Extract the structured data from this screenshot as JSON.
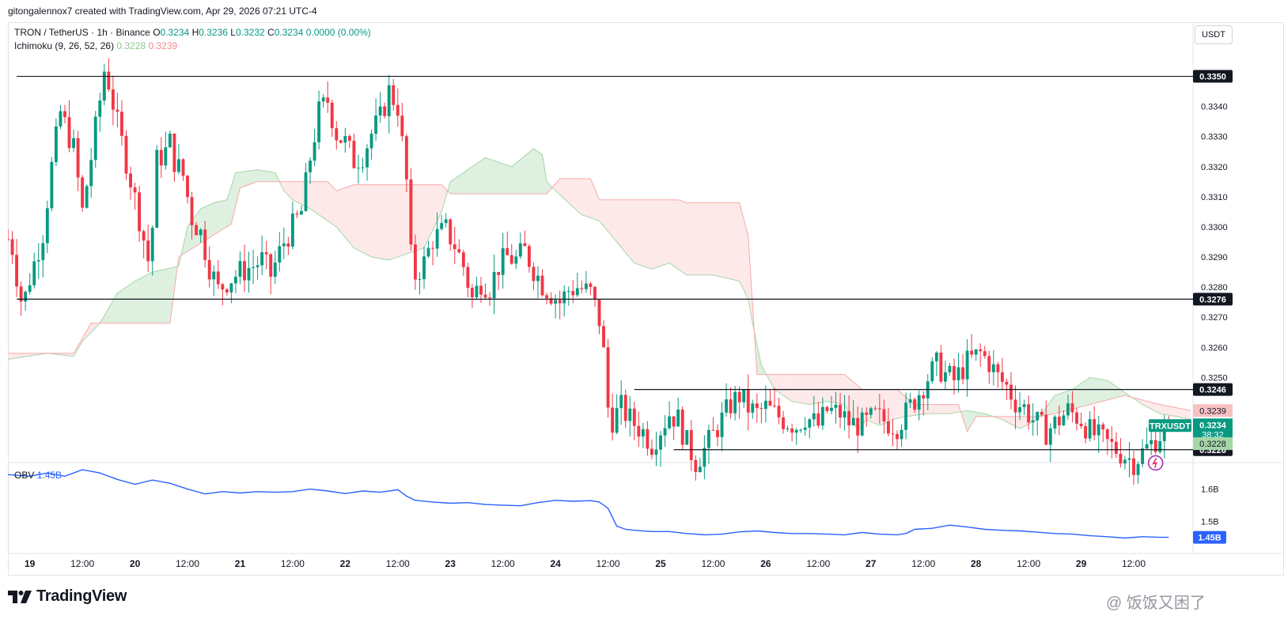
{
  "header": {
    "credit": "gitongalennox7 created with TradingView.com, Apr 29, 2026 07:21 UTC-4"
  },
  "legend": {
    "symbol": "TRON / TetherUS · 1h · Binance",
    "o_label": "O",
    "o_value": "0.3234",
    "h_label": "H",
    "h_value": "0.3236",
    "l_label": "L",
    "l_value": "0.3232",
    "c_label": "C",
    "c_value": "0.3234",
    "change": "0.0000 (0.00%)",
    "ichimoku_label": "Ichimoku (9, 26, 52, 26)",
    "ichimoku_a": "0.3228",
    "ichimoku_b": "0.3239",
    "obv_label": "OBV",
    "obv_value": "1.45B"
  },
  "currency": "USDT",
  "symbol_badge": "TRXUSDT",
  "countdown": "38:32",
  "brand": {
    "name": "TradingView"
  },
  "watermark": "@ 饭饭又困了",
  "colors": {
    "up": "#089981",
    "down": "#f23645",
    "obv": "#2962ff",
    "cloud_bull": "#c8e6c9",
    "cloud_bear": "#fcdada"
  },
  "chart_data": {
    "type": "candlestick",
    "title": "TRON / TetherUS · 1h · Binance",
    "price_range": [
      0.3222,
      0.3368
    ],
    "y_ticks": [
      "0.3340",
      "0.3330",
      "0.3320",
      "0.3310",
      "0.3300",
      "0.3290",
      "0.3280",
      "0.3270",
      "0.3260",
      "0.3250"
    ],
    "y_tick_values": [
      0.334,
      0.333,
      0.332,
      0.331,
      0.33,
      0.329,
      0.328,
      0.327,
      0.326,
      0.325
    ],
    "x_labels": [
      "19",
      "12:00",
      "20",
      "12:00",
      "21",
      "12:00",
      "22",
      "12:00",
      "23",
      "12:00",
      "24",
      "12:00",
      "25",
      "12:00",
      "26",
      "12:00",
      "27",
      "12:00",
      "28",
      "12:00",
      "29",
      "12:00"
    ],
    "x_label_times": [
      0,
      12,
      24,
      36,
      48,
      60,
      72,
      84,
      96,
      108,
      120,
      132,
      144,
      156,
      168,
      180,
      192,
      204,
      216,
      228,
      240,
      252
    ],
    "time_range": [
      -5,
      265
    ],
    "horizontal_levels": [
      {
        "label": "0.3350",
        "price": 0.335,
        "t_start": -3,
        "t_end": 265
      },
      {
        "label": "0.3276",
        "price": 0.3276,
        "t_start": -3,
        "t_end": 265
      },
      {
        "label": "0.3246",
        "price": 0.3246,
        "t_start": 138,
        "t_end": 265
      },
      {
        "label": "0.3226",
        "price": 0.3226,
        "t_start": 147,
        "t_end": 265
      }
    ],
    "price_labels": [
      {
        "label": "0.3239",
        "price": 0.3239,
        "kind": "ichimoku_b"
      },
      {
        "label": "0.3234",
        "price": 0.3234,
        "kind": "last"
      },
      {
        "label": "0.3228",
        "price": 0.3228,
        "kind": "ichimoku_a"
      }
    ],
    "candles_path": [
      [
        -5,
        0.3296
      ],
      [
        -4,
        0.3293
      ],
      [
        -3,
        0.3284
      ],
      [
        -2,
        0.3276
      ],
      [
        -1,
        0.3277
      ],
      [
        0,
        0.3283
      ],
      [
        3,
        0.3298
      ],
      [
        5,
        0.332
      ],
      [
        7,
        0.3338
      ],
      [
        10,
        0.3326
      ],
      [
        12,
        0.3305
      ],
      [
        14,
        0.3323
      ],
      [
        16,
        0.3342
      ],
      [
        17,
        0.3352
      ],
      [
        18,
        0.3348
      ],
      [
        20,
        0.3334
      ],
      [
        22,
        0.3322
      ],
      [
        25,
        0.3303
      ],
      [
        26,
        0.3296
      ],
      [
        27,
        0.3289
      ],
      [
        28,
        0.33
      ],
      [
        29,
        0.3322
      ],
      [
        31,
        0.3325
      ],
      [
        32,
        0.3328
      ],
      [
        33,
        0.3322
      ],
      [
        35,
        0.3317
      ],
      [
        37,
        0.3303
      ],
      [
        39,
        0.3298
      ],
      [
        41,
        0.3287
      ],
      [
        43,
        0.3279
      ],
      [
        45,
        0.3282
      ],
      [
        48,
        0.3285
      ],
      [
        51,
        0.3287
      ],
      [
        53,
        0.3289
      ],
      [
        55,
        0.3284
      ],
      [
        58,
        0.3295
      ],
      [
        62,
        0.3305
      ],
      [
        64,
        0.3323
      ],
      [
        66,
        0.3338
      ],
      [
        68,
        0.3342
      ],
      [
        70,
        0.3331
      ],
      [
        72,
        0.3328
      ],
      [
        74,
        0.3322
      ],
      [
        76,
        0.3324
      ],
      [
        78,
        0.3331
      ],
      [
        80,
        0.3336
      ],
      [
        82,
        0.3345
      ],
      [
        84,
        0.334
      ],
      [
        86,
        0.3315
      ],
      [
        87,
        0.329
      ],
      [
        88,
        0.3284
      ],
      [
        90,
        0.3288
      ],
      [
        92,
        0.3296
      ],
      [
        95,
        0.3299
      ],
      [
        97,
        0.3294
      ],
      [
        99,
        0.3287
      ],
      [
        101,
        0.3276
      ],
      [
        103,
        0.3282
      ],
      [
        105,
        0.328
      ],
      [
        107,
        0.3287
      ],
      [
        109,
        0.329
      ],
      [
        111,
        0.3289
      ],
      [
        113,
        0.3292
      ],
      [
        115,
        0.3286
      ],
      [
        117,
        0.3281
      ],
      [
        119,
        0.3278
      ],
      [
        121,
        0.3275
      ],
      [
        123,
        0.3279
      ],
      [
        125,
        0.328
      ],
      [
        128,
        0.3278
      ],
      [
        130,
        0.3269
      ],
      [
        131,
        0.3258
      ],
      [
        132,
        0.324
      ],
      [
        133,
        0.3236
      ],
      [
        135,
        0.324
      ],
      [
        137,
        0.3236
      ],
      [
        140,
        0.3232
      ],
      [
        142,
        0.3228
      ],
      [
        144,
        0.3233
      ],
      [
        146,
        0.3238
      ],
      [
        148,
        0.3236
      ],
      [
        150,
        0.3228
      ],
      [
        152,
        0.3222
      ],
      [
        154,
        0.3226
      ],
      [
        156,
        0.3231
      ],
      [
        158,
        0.3236
      ],
      [
        160,
        0.3241
      ],
      [
        162,
        0.3244
      ],
      [
        164,
        0.324
      ],
      [
        166,
        0.3238
      ],
      [
        168,
        0.324
      ],
      [
        170,
        0.3238
      ],
      [
        172,
        0.3236
      ],
      [
        175,
        0.3234
      ],
      [
        177,
        0.3237
      ],
      [
        180,
        0.3234
      ],
      [
        182,
        0.3239
      ],
      [
        185,
        0.3238
      ],
      [
        187,
        0.3235
      ],
      [
        190,
        0.3234
      ],
      [
        193,
        0.3237
      ],
      [
        196,
        0.3235
      ],
      [
        198,
        0.3234
      ],
      [
        200,
        0.3238
      ],
      [
        203,
        0.3245
      ],
      [
        205,
        0.325
      ],
      [
        207,
        0.3254
      ],
      [
        209,
        0.3251
      ],
      [
        211,
        0.3249
      ],
      [
        214,
        0.3255
      ],
      [
        217,
        0.3258
      ],
      [
        219,
        0.3255
      ],
      [
        221,
        0.325
      ],
      [
        223,
        0.3247
      ],
      [
        225,
        0.3242
      ],
      [
        227,
        0.324
      ],
      [
        229,
        0.3236
      ],
      [
        232,
        0.3232
      ],
      [
        235,
        0.3236
      ],
      [
        237,
        0.3239
      ],
      [
        240,
        0.3236
      ],
      [
        242,
        0.3232
      ],
      [
        244,
        0.323
      ],
      [
        246,
        0.3228
      ],
      [
        248,
        0.3226
      ],
      [
        250,
        0.3224
      ],
      [
        252,
        0.3222
      ],
      [
        254,
        0.3225
      ],
      [
        256,
        0.3228
      ],
      [
        258,
        0.3231
      ],
      [
        260,
        0.3234
      ]
    ],
    "ichimoku_span_a": [
      [
        -5,
        0.3256
      ],
      [
        4,
        0.3258
      ],
      [
        10,
        0.3257
      ],
      [
        12,
        0.3262
      ],
      [
        16,
        0.3268
      ],
      [
        20,
        0.3278
      ],
      [
        24,
        0.3282
      ],
      [
        28,
        0.3285
      ],
      [
        31,
        0.3286
      ],
      [
        34,
        0.3287
      ],
      [
        36,
        0.33
      ],
      [
        39,
        0.3306
      ],
      [
        42,
        0.3308
      ],
      [
        45,
        0.3309
      ],
      [
        47,
        0.3318
      ],
      [
        52,
        0.3319
      ],
      [
        56,
        0.3318
      ],
      [
        58,
        0.3312
      ],
      [
        60,
        0.3309
      ],
      [
        64,
        0.3306
      ],
      [
        68,
        0.3302
      ],
      [
        70,
        0.33
      ],
      [
        74,
        0.3293
      ],
      [
        78,
        0.329
      ],
      [
        82,
        0.3289
      ],
      [
        86,
        0.3291
      ],
      [
        90,
        0.3293
      ],
      [
        94,
        0.3305
      ],
      [
        96,
        0.3315
      ],
      [
        100,
        0.3319
      ],
      [
        104,
        0.3323
      ],
      [
        110,
        0.332
      ],
      [
        115,
        0.3326
      ],
      [
        117,
        0.3324
      ],
      [
        118,
        0.3315
      ],
      [
        120,
        0.3312
      ],
      [
        126,
        0.3304
      ],
      [
        130,
        0.3302
      ],
      [
        134,
        0.3295
      ],
      [
        138,
        0.3288
      ],
      [
        142,
        0.3286
      ],
      [
        146,
        0.3288
      ],
      [
        150,
        0.3284
      ],
      [
        156,
        0.3284
      ],
      [
        162,
        0.3282
      ],
      [
        164,
        0.3276
      ],
      [
        165,
        0.3268
      ],
      [
        167,
        0.3254
      ],
      [
        170,
        0.3246
      ],
      [
        174,
        0.3242
      ],
      [
        178,
        0.3241
      ],
      [
        182,
        0.3242
      ],
      [
        186,
        0.3241
      ],
      [
        188,
        0.3236
      ],
      [
        189,
        0.3232
      ],
      [
        191,
        0.3236
      ],
      [
        194,
        0.3234
      ],
      [
        197,
        0.3236
      ],
      [
        200,
        0.3237
      ],
      [
        205,
        0.3238
      ],
      [
        210,
        0.3238
      ],
      [
        214,
        0.3239
      ],
      [
        218,
        0.3238
      ],
      [
        222,
        0.3236
      ],
      [
        226,
        0.3233
      ],
      [
        230,
        0.3236
      ],
      [
        234,
        0.3244
      ],
      [
        238,
        0.3246
      ],
      [
        242,
        0.325
      ],
      [
        246,
        0.3249
      ],
      [
        250,
        0.3245
      ],
      [
        254,
        0.3241
      ],
      [
        258,
        0.3238
      ],
      [
        262,
        0.3237
      ],
      [
        265,
        0.3236
      ]
    ],
    "ichimoku_span_b": [
      [
        -5,
        0.3258
      ],
      [
        10,
        0.3258
      ],
      [
        14,
        0.3268
      ],
      [
        32,
        0.3268
      ],
      [
        34,
        0.329
      ],
      [
        46,
        0.3301
      ],
      [
        48,
        0.3313
      ],
      [
        52,
        0.3315
      ],
      [
        68,
        0.3315
      ],
      [
        70,
        0.3312
      ],
      [
        74,
        0.3314
      ],
      [
        78,
        0.3314
      ],
      [
        86,
        0.3314
      ],
      [
        94,
        0.3314
      ],
      [
        96,
        0.3311
      ],
      [
        118,
        0.3311
      ],
      [
        121,
        0.3316
      ],
      [
        128,
        0.3316
      ],
      [
        130,
        0.3309
      ],
      [
        148,
        0.3309
      ],
      [
        150,
        0.3308
      ],
      [
        162,
        0.3308
      ],
      [
        164,
        0.3297
      ],
      [
        166,
        0.3251
      ],
      [
        186,
        0.3251
      ],
      [
        190,
        0.3246
      ],
      [
        198,
        0.3246
      ],
      [
        202,
        0.3241
      ],
      [
        212,
        0.3241
      ],
      [
        214,
        0.3232
      ],
      [
        216,
        0.3237
      ],
      [
        230,
        0.3237
      ],
      [
        234,
        0.3238
      ],
      [
        250,
        0.3244
      ],
      [
        258,
        0.3241
      ],
      [
        265,
        0.3239
      ]
    ],
    "obv_range": [
      1.4,
      1.68
    ],
    "obv_ticks": [
      "1.6B",
      "1.5B"
    ],
    "obv_tick_values": [
      1.6,
      1.5
    ],
    "obv_last_label": "1.45B",
    "obv_last_value": 1.45,
    "obv_series": [
      [
        -5,
        1.645
      ],
      [
        0,
        1.64
      ],
      [
        4,
        1.65
      ],
      [
        8,
        1.64
      ],
      [
        12,
        1.66
      ],
      [
        16,
        1.65
      ],
      [
        20,
        1.63
      ],
      [
        24,
        1.615
      ],
      [
        28,
        1.628
      ],
      [
        32,
        1.618
      ],
      [
        36,
        1.6
      ],
      [
        40,
        1.585
      ],
      [
        44,
        1.592
      ],
      [
        48,
        1.588
      ],
      [
        52,
        1.592
      ],
      [
        56,
        1.59
      ],
      [
        60,
        1.592
      ],
      [
        64,
        1.6
      ],
      [
        68,
        1.594
      ],
      [
        72,
        1.586
      ],
      [
        76,
        1.594
      ],
      [
        80,
        1.59
      ],
      [
        84,
        1.598
      ],
      [
        86,
        1.578
      ],
      [
        88,
        1.565
      ],
      [
        92,
        1.56
      ],
      [
        96,
        1.556
      ],
      [
        100,
        1.558
      ],
      [
        104,
        1.552
      ],
      [
        108,
        1.55
      ],
      [
        112,
        1.548
      ],
      [
        116,
        1.558
      ],
      [
        120,
        1.565
      ],
      [
        124,
        1.562
      ],
      [
        128,
        1.564
      ],
      [
        130,
        1.56
      ],
      [
        132,
        1.54
      ],
      [
        134,
        1.485
      ],
      [
        136,
        1.475
      ],
      [
        138,
        1.472
      ],
      [
        142,
        1.468
      ],
      [
        146,
        1.468
      ],
      [
        150,
        1.462
      ],
      [
        154,
        1.458
      ],
      [
        158,
        1.46
      ],
      [
        162,
        1.467
      ],
      [
        166,
        1.47
      ],
      [
        170,
        1.465
      ],
      [
        174,
        1.462
      ],
      [
        178,
        1.462
      ],
      [
        182,
        1.46
      ],
      [
        186,
        1.458
      ],
      [
        190,
        1.465
      ],
      [
        194,
        1.46
      ],
      [
        198,
        1.458
      ],
      [
        200,
        1.462
      ],
      [
        202,
        1.475
      ],
      [
        206,
        1.478
      ],
      [
        210,
        1.488
      ],
      [
        214,
        1.482
      ],
      [
        218,
        1.475
      ],
      [
        222,
        1.472
      ],
      [
        226,
        1.47
      ],
      [
        230,
        1.466
      ],
      [
        234,
        1.462
      ],
      [
        238,
        1.46
      ],
      [
        242,
        1.455
      ],
      [
        246,
        1.452
      ],
      [
        250,
        1.448
      ],
      [
        254,
        1.452
      ],
      [
        258,
        1.45
      ],
      [
        260,
        1.45
      ]
    ]
  }
}
